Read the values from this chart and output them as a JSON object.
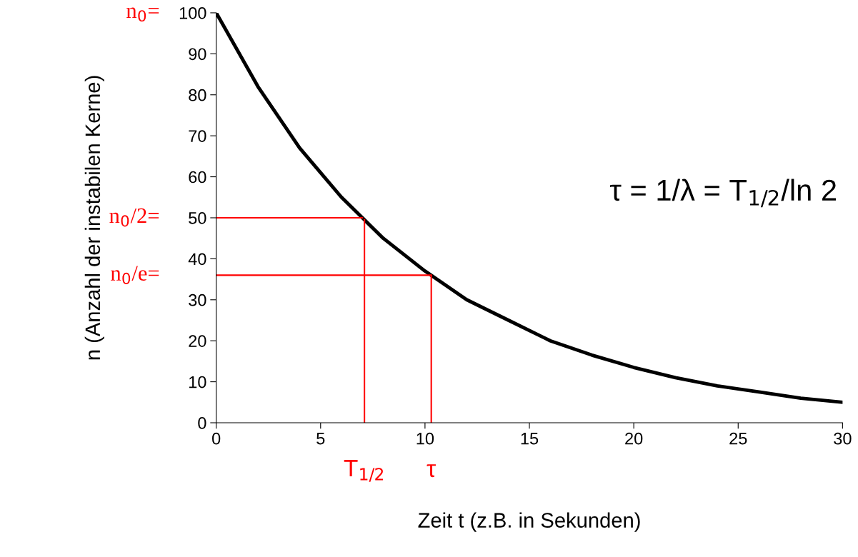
{
  "chart_data": {
    "type": "line",
    "xlabel": "Zeit t (z.B. in Sekunden)",
    "ylabel": "n (Anzahl der instabilen Kerne)",
    "x": [
      0,
      2,
      4,
      6,
      8,
      10,
      12,
      14,
      16,
      18,
      20,
      22,
      24,
      26,
      28,
      30
    ],
    "series": [
      {
        "color": "#000000",
        "values": [
          100,
          82,
          67,
          55,
          45,
          37,
          30,
          25,
          20,
          16.5,
          13.5,
          11,
          9,
          7.5,
          6,
          5
        ]
      }
    ],
    "xlim": [
      0,
      30
    ],
    "xticks": [
      0,
      5,
      10,
      15,
      20,
      25,
      30
    ],
    "ylim": [
      0,
      100
    ],
    "yticks": [
      0,
      10,
      20,
      30,
      40,
      50,
      60,
      70,
      80,
      90,
      100
    ],
    "ref_lines": [
      {
        "axis": "y",
        "value": 50,
        "label": "n$_{0}$/2=",
        "color": "#ff0000"
      },
      {
        "axis": "y",
        "value": 36,
        "label": "n$_{0}$/e=",
        "color": "#ff0000"
      },
      {
        "axis": "x",
        "value": 7.1,
        "label": "T$_{1/2}$",
        "color": "#ff0000"
      },
      {
        "axis": "x",
        "value": 10.3,
        "label": "τ",
        "color": "#ff0000"
      }
    ],
    "annotations": [
      "n$_{0}$=",
      "τ = 1/λ = T$_{1/2}$/ln 2"
    ],
    "grid": false,
    "legend": false,
    "marker": "none",
    "line_style": "solid"
  }
}
